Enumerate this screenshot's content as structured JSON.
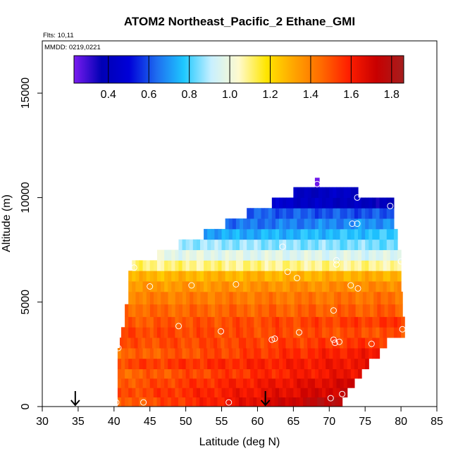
{
  "chart_data": {
    "type": "heatmap",
    "title": "ATOM2 Northeast_Pacific_2 Ethane_GMI",
    "flights_label": "Flts: 10,11",
    "dates_label": "MMDD: 0219,0221",
    "xlabel": "Latitude (deg N)",
    "ylabel": "Altitude (m)",
    "xlim": [
      30,
      85
    ],
    "ylim": [
      0,
      17500
    ],
    "xticks": [
      30,
      35,
      40,
      45,
      50,
      55,
      60,
      65,
      70,
      75,
      80,
      85
    ],
    "yticks": [
      0,
      5000,
      10000,
      15000
    ],
    "colorbar": {
      "range": [
        0.23,
        1.86
      ],
      "ticks": [
        0.4,
        0.6,
        0.8,
        1.0,
        1.2,
        1.4,
        1.6,
        1.8
      ],
      "tick_labels": [
        "0.4",
        "0.6",
        "0.8",
        "1.0",
        "1.2",
        "1.4",
        "1.6",
        "1.8"
      ],
      "colors": [
        "#7a1cf0",
        "#0000b4",
        "#0000d8",
        "#1e6cf0",
        "#1ec8ff",
        "#c8f0ff",
        "#fffacd",
        "#ffe600",
        "#ffa500",
        "#ff6a00",
        "#ff1e00",
        "#c80000",
        "#a51e1e"
      ]
    },
    "layers": [
      {
        "alt_low": 0,
        "alt_high": 450,
        "lat_min": 40.5,
        "lat_max": 71.8,
        "value_south": 1.45,
        "value_north": 1.8
      },
      {
        "alt_low": 450,
        "alt_high": 900,
        "lat_min": 40.5,
        "lat_max": 72.5,
        "value_south": 1.5,
        "value_north": 1.72
      },
      {
        "alt_low": 900,
        "alt_high": 1350,
        "lat_min": 40.5,
        "lat_max": 73.5,
        "value_south": 1.48,
        "value_north": 1.7
      },
      {
        "alt_low": 1350,
        "alt_high": 1800,
        "lat_min": 40.5,
        "lat_max": 74.5,
        "value_south": 1.45,
        "value_north": 1.65
      },
      {
        "alt_low": 1800,
        "alt_high": 2300,
        "lat_min": 40.5,
        "lat_max": 75.5,
        "value_south": 1.52,
        "value_north": 1.64
      },
      {
        "alt_low": 2300,
        "alt_high": 2800,
        "lat_min": 40.5,
        "lat_max": 77.0,
        "value_south": 1.45,
        "value_north": 1.62
      },
      {
        "alt_low": 2800,
        "alt_high": 3300,
        "lat_min": 40.8,
        "lat_max": 78.0,
        "value_south": 1.5,
        "value_north": 1.55
      },
      {
        "alt_low": 3300,
        "alt_high": 3800,
        "lat_min": 41.0,
        "lat_max": 80.5,
        "value_south": 1.52,
        "value_north": 1.5
      },
      {
        "alt_low": 3800,
        "alt_high": 4300,
        "lat_min": 41.5,
        "lat_max": 80.5,
        "value_south": 1.48,
        "value_north": 1.55
      },
      {
        "alt_low": 4300,
        "alt_high": 4900,
        "lat_min": 41.5,
        "lat_max": 80.2,
        "value_south": 1.45,
        "value_north": 1.48
      },
      {
        "alt_low": 4900,
        "alt_high": 5500,
        "lat_min": 42.0,
        "lat_max": 80.2,
        "value_south": 1.4,
        "value_north": 1.44
      },
      {
        "alt_low": 5500,
        "alt_high": 6000,
        "lat_min": 42.0,
        "lat_max": 80.0,
        "value_south": 1.34,
        "value_north": 1.38
      },
      {
        "alt_low": 6000,
        "alt_high": 6500,
        "lat_min": 42.0,
        "lat_max": 80.0,
        "value_south": 1.28,
        "value_north": 1.3
      },
      {
        "alt_low": 6500,
        "alt_high": 7000,
        "lat_min": 42.5,
        "lat_max": 80.0,
        "value_south": 1.1,
        "value_north": 1.08
      },
      {
        "alt_low": 7000,
        "alt_high": 7500,
        "lat_min": 46.0,
        "lat_max": 80.0,
        "value_south": 0.98,
        "value_north": 0.95
      },
      {
        "alt_low": 7500,
        "alt_high": 8000,
        "lat_min": 49.0,
        "lat_max": 79.5,
        "value_south": 0.88,
        "value_north": 0.84
      },
      {
        "alt_low": 8000,
        "alt_high": 8500,
        "lat_min": 52.5,
        "lat_max": 79.5,
        "value_south": 0.72,
        "value_north": 0.78
      },
      {
        "alt_low": 8500,
        "alt_high": 9000,
        "lat_min": 55.5,
        "lat_max": 79.0,
        "value_south": 0.64,
        "value_north": 0.7
      },
      {
        "alt_low": 9000,
        "alt_high": 9500,
        "lat_min": 58.5,
        "lat_max": 79.0,
        "value_south": 0.62,
        "value_north": 0.6
      },
      {
        "alt_low": 9500,
        "alt_high": 10000,
        "lat_min": 62.0,
        "lat_max": 79.0,
        "value_south": 0.46,
        "value_north": 0.38
      },
      {
        "alt_low": 10000,
        "alt_high": 10500,
        "lat_min": 65.0,
        "lat_max": 74.0,
        "value_south": 0.4,
        "value_north": 0.44
      },
      {
        "alt_low": 10500,
        "alt_high": 10950,
        "lat_min": 68.0,
        "lat_max": 68.6,
        "value_south": 0.26,
        "value_north": 0.26
      }
    ],
    "observations": [
      {
        "lat": 40.3,
        "alt": 200
      },
      {
        "lat": 44.1,
        "alt": 200
      },
      {
        "lat": 56.0,
        "alt": 200
      },
      {
        "lat": 70.2,
        "alt": 400
      },
      {
        "lat": 71.8,
        "alt": 600
      },
      {
        "lat": 40.6,
        "alt": 2800
      },
      {
        "lat": 49.0,
        "alt": 3850
      },
      {
        "lat": 54.9,
        "alt": 3600
      },
      {
        "lat": 62.0,
        "alt": 3200
      },
      {
        "lat": 62.4,
        "alt": 3250
      },
      {
        "lat": 65.8,
        "alt": 3550
      },
      {
        "lat": 70.6,
        "alt": 3200
      },
      {
        "lat": 70.8,
        "alt": 3050
      },
      {
        "lat": 71.4,
        "alt": 3100
      },
      {
        "lat": 75.9,
        "alt": 3000
      },
      {
        "lat": 80.2,
        "alt": 3700
      },
      {
        "lat": 70.6,
        "alt": 4600
      },
      {
        "lat": 45.0,
        "alt": 5750
      },
      {
        "lat": 50.8,
        "alt": 5800
      },
      {
        "lat": 57.0,
        "alt": 5850
      },
      {
        "lat": 65.5,
        "alt": 6150
      },
      {
        "lat": 73.0,
        "alt": 5800
      },
      {
        "lat": 74.0,
        "alt": 5650
      },
      {
        "lat": 42.8,
        "alt": 6650
      },
      {
        "lat": 64.2,
        "alt": 6450
      },
      {
        "lat": 71.0,
        "alt": 6800
      },
      {
        "lat": 71.0,
        "alt": 7000
      },
      {
        "lat": 63.5,
        "alt": 7650
      },
      {
        "lat": 80.0,
        "alt": 6950
      },
      {
        "lat": 73.2,
        "alt": 8750
      },
      {
        "lat": 73.9,
        "alt": 8750
      },
      {
        "lat": 73.9,
        "alt": 10000
      },
      {
        "lat": 78.5,
        "alt": 9600
      },
      {
        "lat": 68.3,
        "alt": 10650
      }
    ],
    "arrows": [
      {
        "lat": 34.6
      },
      {
        "lat": 61.1
      }
    ]
  }
}
